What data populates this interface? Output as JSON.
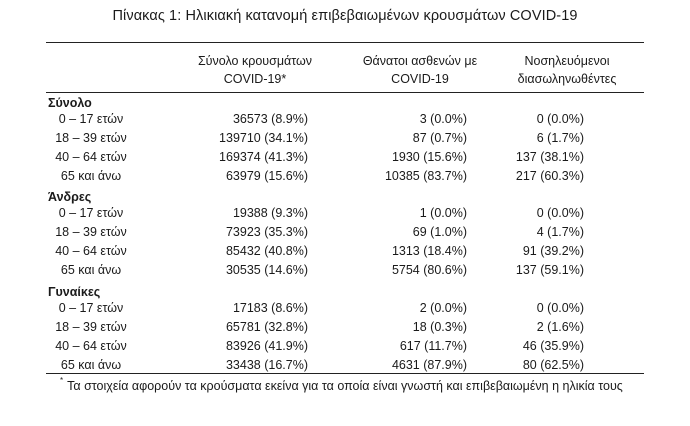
{
  "title": "Πίνακας 1: Ηλικιακή κατανομή επιβεβαιωμένων κρουσμάτων COVID-19",
  "columns": [
    [
      "Σύνολο κρουσμάτων",
      "COVID-19*"
    ],
    [
      "Θάνατοι ασθενών με",
      "COVID-19"
    ],
    [
      "Νοσηλευόμενοι",
      "διασωληνωθέντες"
    ]
  ],
  "groups": [
    {
      "label": "Σύνολο",
      "rows": [
        {
          "age": "0 – 17 ετών",
          "cases": "36573 (8.9%)",
          "deaths": "3 (0.0%)",
          "icu": "0 (0.0%)"
        },
        {
          "age": "18 – 39 ετών",
          "cases": "139710 (34.1%)",
          "deaths": "87 (0.7%)",
          "icu": "6 (1.7%)"
        },
        {
          "age": "40 – 64 ετών",
          "cases": "169374 (41.3%)",
          "deaths": "1930 (15.6%)",
          "icu": "137 (38.1%)"
        },
        {
          "age": "65 και άνω",
          "cases": "63979 (15.6%)",
          "deaths": "10385 (83.7%)",
          "icu": "217 (60.3%)"
        }
      ]
    },
    {
      "label": "Άνδρες",
      "rows": [
        {
          "age": "0 – 17 ετών",
          "cases": "19388 (9.3%)",
          "deaths": "1 (0.0%)",
          "icu": "0 (0.0%)"
        },
        {
          "age": "18 – 39 ετών",
          "cases": "73923 (35.3%)",
          "deaths": "69 (1.0%)",
          "icu": "4 (1.7%)"
        },
        {
          "age": "40 – 64 ετών",
          "cases": "85432 (40.8%)",
          "deaths": "1313 (18.4%)",
          "icu": "91 (39.2%)"
        },
        {
          "age": "65 και άνω",
          "cases": "30535 (14.6%)",
          "deaths": "5754 (80.6%)",
          "icu": "137 (59.1%)"
        }
      ]
    },
    {
      "label": "Γυναίκες",
      "rows": [
        {
          "age": "0 – 17 ετών",
          "cases": "17183 (8.6%)",
          "deaths": "2 (0.0%)",
          "icu": "0 (0.0%)"
        },
        {
          "age": "18 – 39 ετών",
          "cases": "65781 (32.8%)",
          "deaths": "18 (0.3%)",
          "icu": "2 (1.6%)"
        },
        {
          "age": "40 – 64 ετών",
          "cases": "83926 (41.9%)",
          "deaths": "617 (11.7%)",
          "icu": "46 (35.9%)"
        },
        {
          "age": "65 και άνω",
          "cases": "33438 (16.7%)",
          "deaths": "4631 (87.9%)",
          "icu": "80 (62.5%)"
        }
      ]
    }
  ],
  "footnote": {
    "marker": "*",
    "text": "Τα στοιχεία αφορούν τα κρούσματα εκείνα για τα οποία είναι γνωστή και επιβεβαιωμένη η ηλικία τους"
  }
}
